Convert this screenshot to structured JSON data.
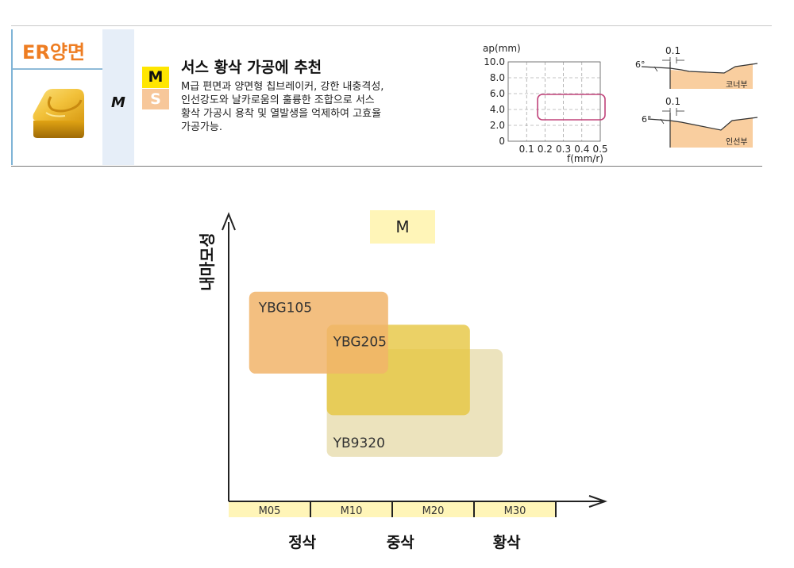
{
  "header": {
    "title": "ER양면",
    "application": "M",
    "badges": [
      "M",
      "S"
    ],
    "heading": "서스 황삭 가공에 추천",
    "description_lines": [
      "M급 편면과 양면형 칩브레이커, 강한 내충격성,",
      "인선강도와 날카로움의 훌륭한 조합으로 서스",
      "황삭 가공시 용착 및 열발생을 억제하여 고효율",
      "가공가능."
    ]
  },
  "colors": {
    "accent_orange": "#ee7d22",
    "badge_yellow": "#ffe600",
    "badge_peach": "#f7c79a",
    "ybg105": "#f1b46a",
    "ybg205": "#e8c845",
    "yb9320": "#eadfb6",
    "chip_window": "#c0437a"
  },
  "chip_chart": {
    "ylabel": "ap(mm)",
    "xlabel": "f(mm/r)",
    "y_ticks": [
      "10.0",
      "8.0",
      "6.0",
      "4.0",
      "2.0",
      "0"
    ],
    "x_ticks": [
      "0.1",
      "0.2",
      "0.3",
      "0.4",
      "0.5"
    ],
    "window": {
      "f_min": 0.16,
      "f_max": 0.5,
      "ap_min": 2.7,
      "ap_max": 5.9
    }
  },
  "edge_profiles": [
    {
      "angle": "6°",
      "land": "0.1",
      "label": "코너부"
    },
    {
      "angle": "6°",
      "land": "0.1",
      "label": "인선부"
    }
  ],
  "chart_data": {
    "type": "area",
    "ylabel": "내마모성",
    "legend": "M",
    "x_scale": [
      "M05",
      "M10",
      "M20",
      "M30"
    ],
    "x_groups": [
      "정삭",
      "중삭",
      "황삭"
    ],
    "x_range": [
      0,
      4
    ],
    "y_range": [
      0,
      10
    ],
    "grades": [
      {
        "name": "YBG105",
        "x_range": [
          0.25,
          1.95
        ],
        "y_range": [
          4.45,
          7.3
        ],
        "color": "#f1b46a",
        "opacity": 0.85
      },
      {
        "name": "YBG205",
        "x_range": [
          1.2,
          2.95
        ],
        "y_range": [
          3.0,
          6.15
        ],
        "color": "#e6c640",
        "opacity": 0.8
      },
      {
        "name": "YB9320",
        "x_range": [
          1.2,
          3.35
        ],
        "y_range": [
          1.55,
          5.3
        ],
        "color": "#e6d9a7",
        "opacity": 0.75
      }
    ]
  }
}
